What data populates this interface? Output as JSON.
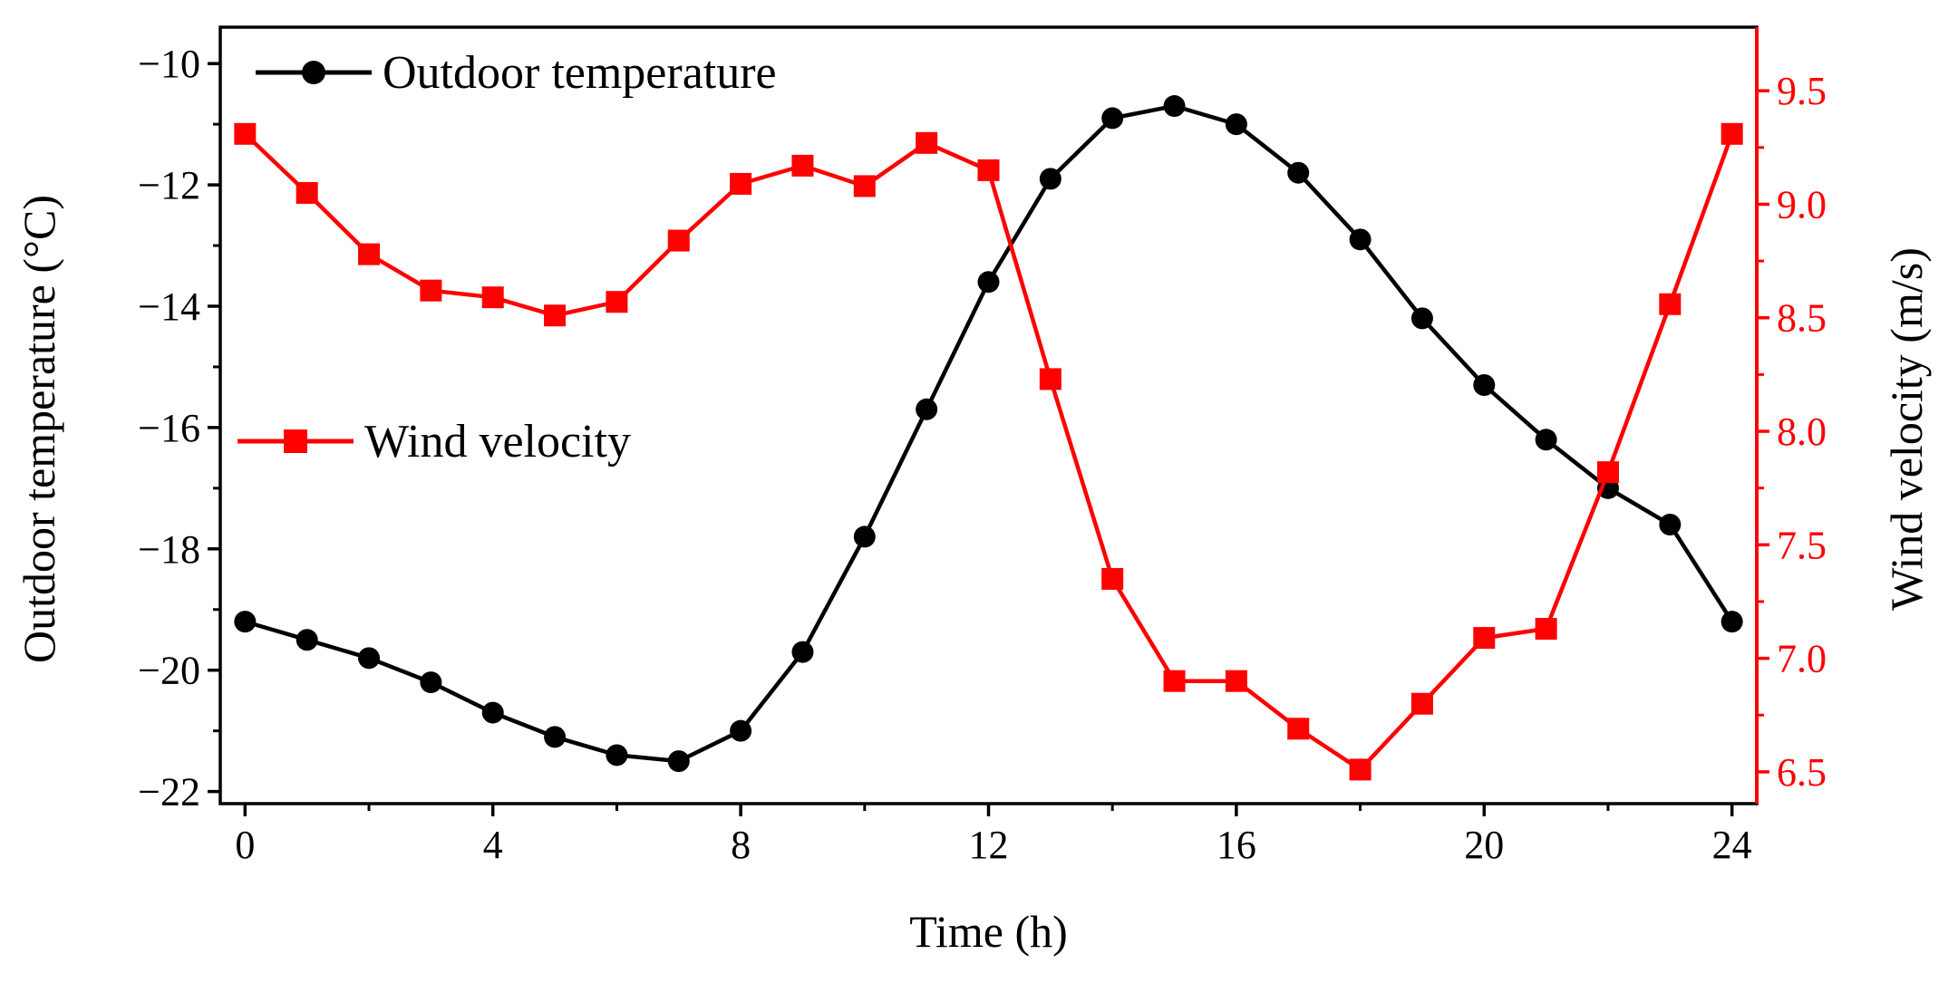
{
  "chart_data": {
    "type": "line",
    "xlabel": "Time (h)",
    "ylabel_left": "Outdoor temperature (°C)",
    "ylabel_right": "Wind velocity (m/s)",
    "xlim": [
      -0.4,
      24.4
    ],
    "xticks": [
      0,
      4,
      8,
      12,
      16,
      20,
      24
    ],
    "ylim_left": [
      -22.2,
      -9.4
    ],
    "yticks_left": [
      -22,
      -20,
      -18,
      -16,
      -14,
      -12,
      -10
    ],
    "ylim_right": [
      6.36,
      9.78
    ],
    "yticks_right": [
      6.5,
      7.0,
      7.5,
      8.0,
      8.5,
      9.0,
      9.5
    ],
    "x": [
      0,
      1,
      2,
      3,
      4,
      5,
      6,
      7,
      8,
      9,
      10,
      11,
      12,
      13,
      14,
      15,
      16,
      17,
      18,
      19,
      20,
      21,
      22,
      23,
      24
    ],
    "series": [
      {
        "name": "Outdoor temperature",
        "axis": "left",
        "color": "#000000",
        "marker": "circle",
        "values": [
          -19.2,
          -19.5,
          -19.8,
          -20.2,
          -20.7,
          -21.1,
          -21.4,
          -21.5,
          -21.0,
          -19.7,
          -17.8,
          -15.7,
          -13.6,
          -11.9,
          -10.9,
          -10.7,
          -11.0,
          -11.8,
          -12.9,
          -14.2,
          -15.3,
          -16.2,
          -17.0,
          -17.6,
          -19.2
        ]
      },
      {
        "name": "Wind velocity",
        "axis": "right",
        "color": "#ff0000",
        "marker": "square",
        "values": [
          9.31,
          9.05,
          8.78,
          8.62,
          8.59,
          8.51,
          8.57,
          8.84,
          9.09,
          9.17,
          9.08,
          9.27,
          9.15,
          8.23,
          7.35,
          6.9,
          6.9,
          6.69,
          6.51,
          6.8,
          7.09,
          7.13,
          7.82,
          8.56,
          9.31
        ]
      }
    ],
    "legend": [
      {
        "label": "Outdoor temperature",
        "position": "top-left"
      },
      {
        "label": "Wind velocity",
        "position": "center-left"
      }
    ]
  }
}
